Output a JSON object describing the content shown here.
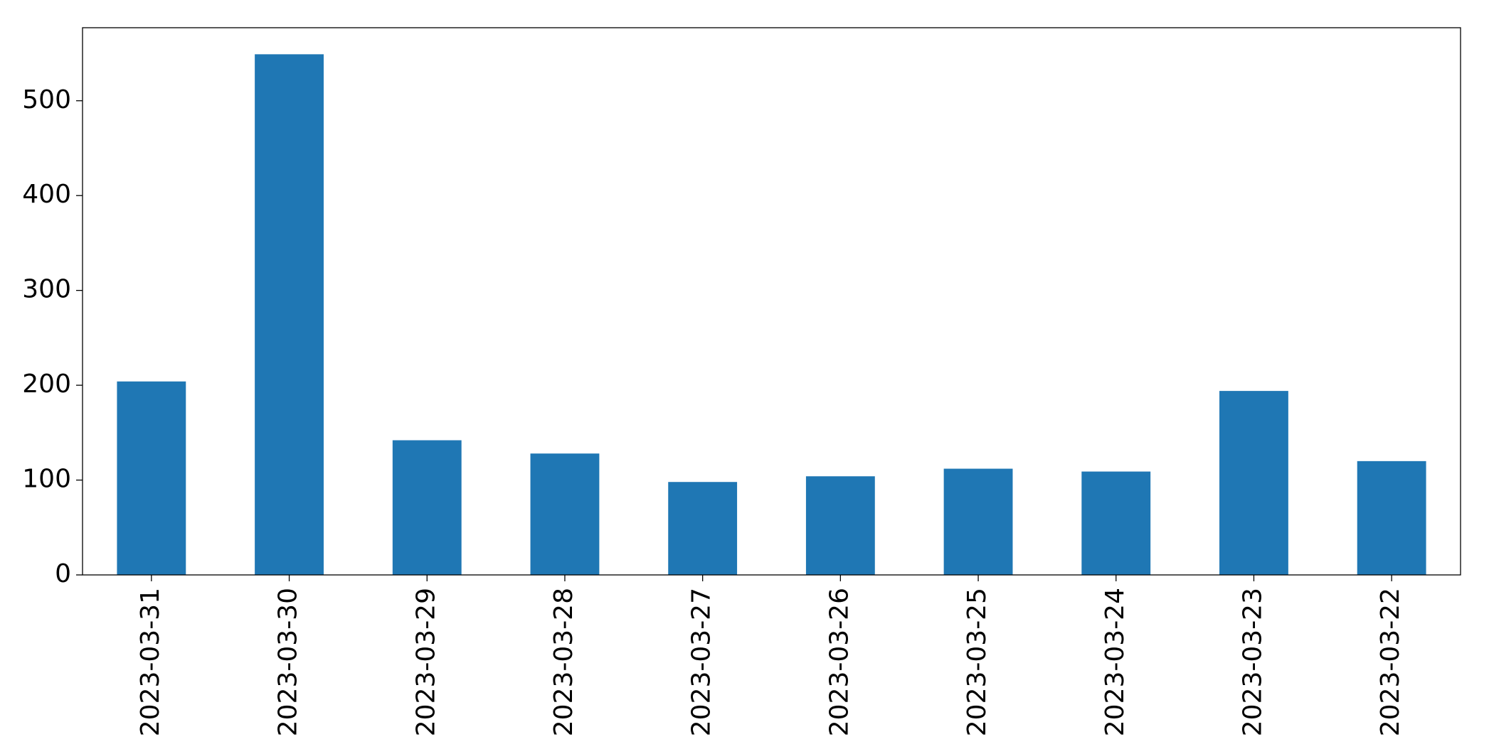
{
  "chart_data": {
    "type": "bar",
    "categories": [
      "2023-03-31",
      "2023-03-30",
      "2023-03-29",
      "2023-03-28",
      "2023-03-27",
      "2023-03-26",
      "2023-03-25",
      "2023-03-24",
      "2023-03-23",
      "2023-03-22"
    ],
    "values": [
      204,
      549,
      142,
      128,
      98,
      104,
      112,
      109,
      194,
      120
    ],
    "color": "#1f77b4",
    "ylim": [
      0,
      577
    ],
    "yticks": [
      0,
      100,
      200,
      300,
      400,
      500
    ],
    "grid": false
  }
}
